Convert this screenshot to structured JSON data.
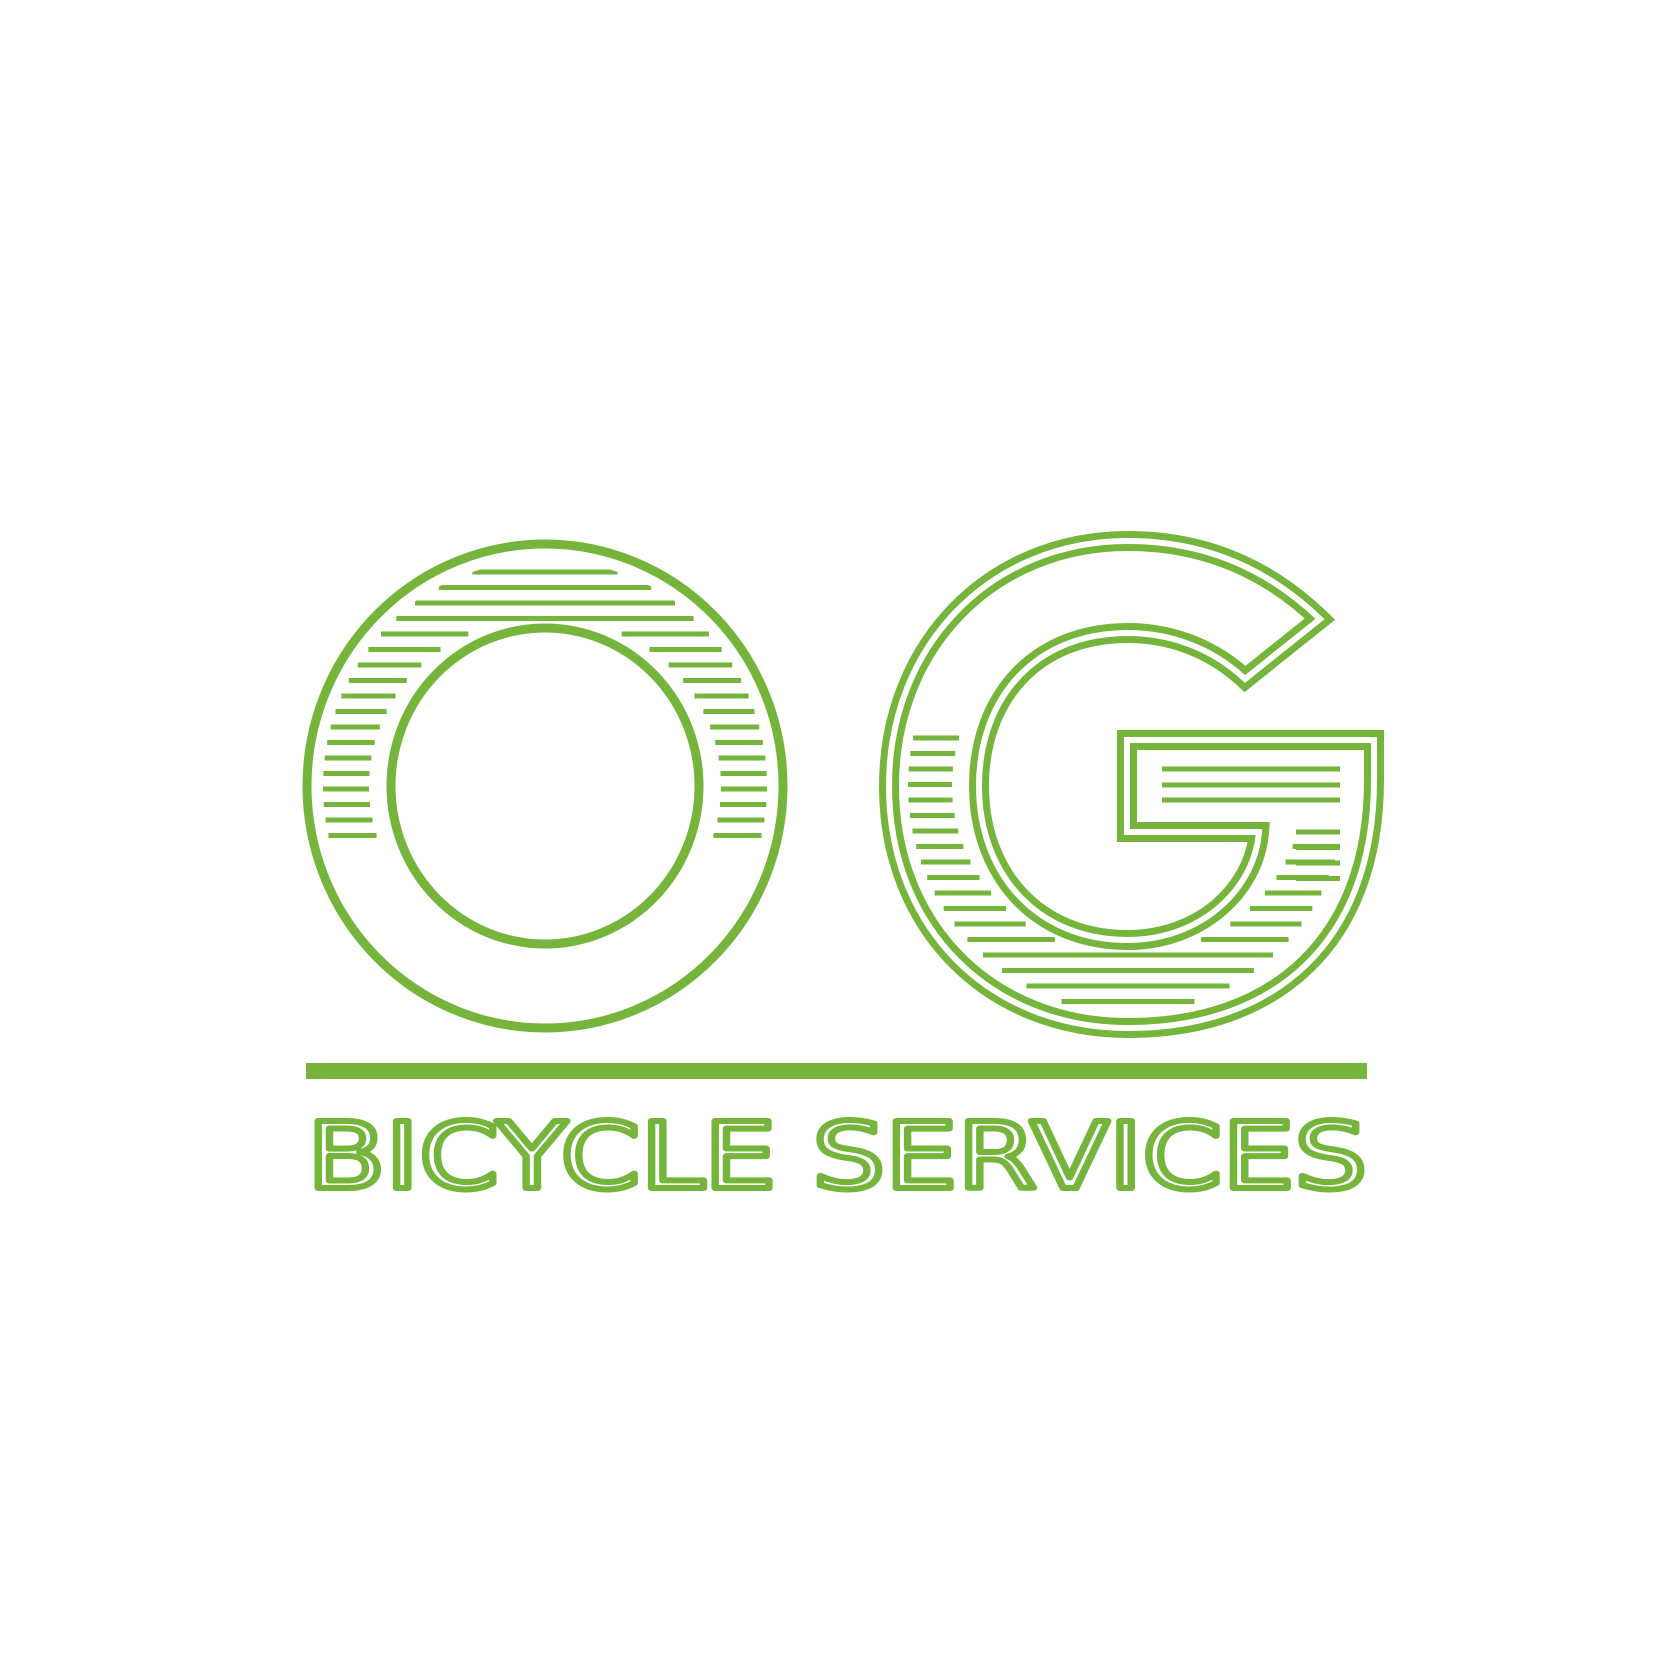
{
  "logo": {
    "monogram": "OG",
    "tagline": "BICYCLE SERVICES",
    "colors": {
      "brand_green": "#76b53b",
      "background": "#ffffff"
    }
  }
}
